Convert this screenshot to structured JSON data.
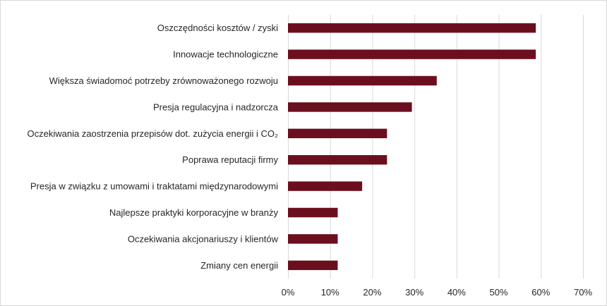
{
  "chart_data": {
    "type": "bar",
    "orientation": "horizontal",
    "categories": [
      "Oszczędności kosztów / zyski",
      "Innowacje technologiczne",
      "Większa świadomoć potrzeby zrównoważonego rozwoju",
      "Presja regulacyjna i nadzorcza",
      "Oczekiwania zaostrzenia przepisów dot. zużycia energii i CO₂",
      "Poprawa reputacji firmy",
      "Presja w związku z umowami i traktatami międzynarodowymi",
      "Najlepsze praktyki korporacyjne w branży",
      "Oczekiwania akcjonariuszy i klientów",
      "Zmiany cen energii"
    ],
    "values": [
      58.8,
      58.8,
      35.3,
      29.4,
      23.5,
      23.5,
      17.6,
      11.8,
      11.8,
      11.8
    ],
    "xlim": [
      0,
      70
    ],
    "xticks": [
      "0%",
      "10%",
      "20%",
      "30%",
      "40%",
      "50%",
      "60%",
      "70%"
    ],
    "title": "",
    "xlabel": "",
    "ylabel": "",
    "grid": "vertical",
    "legend": "none",
    "bar_color": "#6b0f1f"
  }
}
